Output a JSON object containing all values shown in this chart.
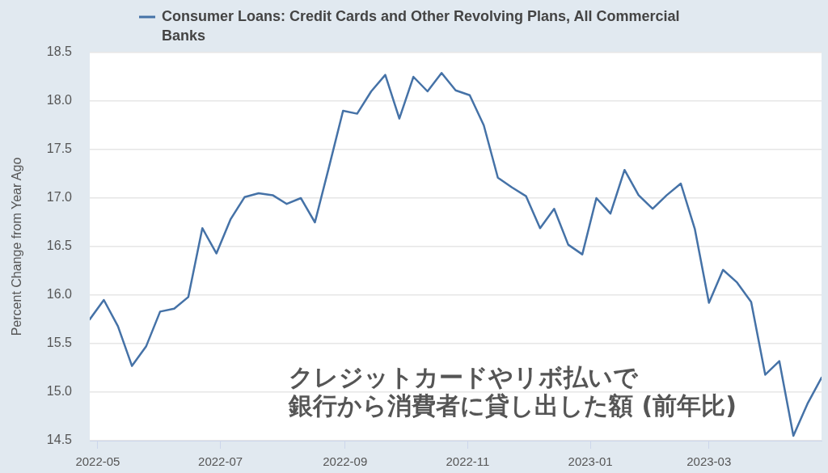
{
  "chart_data": {
    "type": "line",
    "ylabel": "Percent Change from Year Ago",
    "annotations": [
      "クレジットカードやリボ払いで",
      "銀行から消費者に貸し出した額 (前年比)"
    ],
    "x": [
      "2022-04-27",
      "2022-05-04",
      "2022-05-11",
      "2022-05-18",
      "2022-05-25",
      "2022-06-01",
      "2022-06-08",
      "2022-06-15",
      "2022-06-22",
      "2022-06-29",
      "2022-07-06",
      "2022-07-13",
      "2022-07-20",
      "2022-07-27",
      "2022-08-03",
      "2022-08-10",
      "2022-08-17",
      "2022-08-24",
      "2022-08-31",
      "2022-09-07",
      "2022-09-14",
      "2022-09-21",
      "2022-09-28",
      "2022-10-05",
      "2022-10-12",
      "2022-10-19",
      "2022-10-26",
      "2022-11-02",
      "2022-11-09",
      "2022-11-16",
      "2022-11-23",
      "2022-11-30",
      "2022-12-07",
      "2022-12-14",
      "2022-12-21",
      "2022-12-28",
      "2023-01-04",
      "2023-01-11",
      "2023-01-18",
      "2023-01-25",
      "2023-02-01",
      "2023-02-08",
      "2023-02-15",
      "2023-02-22",
      "2023-03-01",
      "2023-03-08",
      "2023-03-15",
      "2023-03-22",
      "2023-03-29",
      "2023-04-05",
      "2023-04-12",
      "2023-04-19",
      "2023-04-26"
    ],
    "series": [
      {
        "name": "Consumer Loans: Credit Cards and Other Revolving Plans, All Commercial Banks",
        "color": "#4572a7",
        "values": [
          15.75,
          15.95,
          15.68,
          15.27,
          15.47,
          15.83,
          15.86,
          15.98,
          16.69,
          16.43,
          16.78,
          17.01,
          17.05,
          17.03,
          16.94,
          17.0,
          16.75,
          17.32,
          17.9,
          17.87,
          18.1,
          18.27,
          17.82,
          18.25,
          18.1,
          18.29,
          18.11,
          18.06,
          17.75,
          17.21,
          17.11,
          17.02,
          16.69,
          16.89,
          16.52,
          16.42,
          17.0,
          16.84,
          17.29,
          17.03,
          16.89,
          17.03,
          17.15,
          16.68,
          15.92,
          16.26,
          16.13,
          15.93,
          15.18,
          15.32,
          14.55,
          14.88,
          15.15
        ]
      }
    ],
    "xlim": [
      "2022-04-27",
      "2023-04-26"
    ],
    "xticks": [
      "2022-05",
      "2022-07",
      "2022-09",
      "2022-11",
      "2023-01",
      "2023-03"
    ],
    "ylim": [
      14.5,
      18.5
    ],
    "yticks": [
      14.5,
      {
        "value": 15,
        "label": "15.0"
      },
      15.5,
      {
        "value": 16,
        "label": "16.0"
      },
      16.5,
      {
        "value": 17,
        "label": "17.0"
      },
      17.5,
      {
        "value": 18,
        "label": "18.0"
      },
      18.5
    ],
    "grid": "y",
    "legend": "top"
  }
}
